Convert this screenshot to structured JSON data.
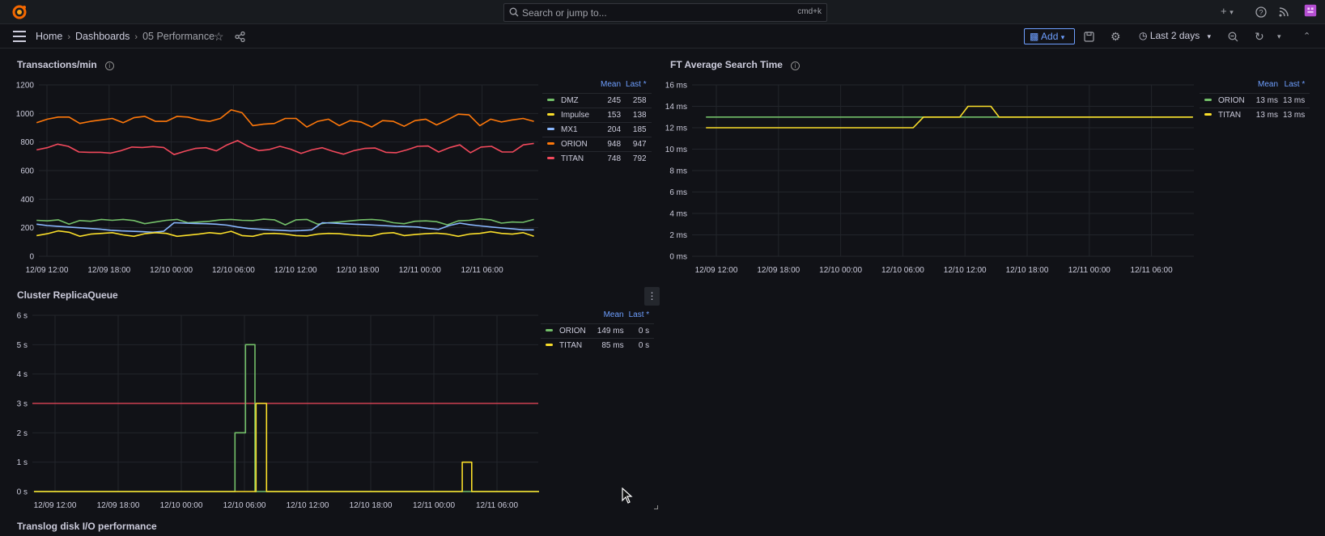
{
  "topbar": {
    "search_placeholder": "Search or jump to...",
    "search_shortcut": "cmd+k",
    "plus_label": "+"
  },
  "breadcrumb": {
    "home": "Home",
    "dashboards": "Dashboards",
    "current": "05 Performance"
  },
  "toolbar": {
    "add_label": "Add",
    "time_range": "Last 2 days"
  },
  "colors": {
    "accent": "#6e9fff",
    "green": "#73bf69",
    "yellow": "#fade2a",
    "blue": "#8ab8ff",
    "orange": "#ff780a",
    "red": "#f2495c"
  },
  "panels": {
    "transactions": {
      "title": "Transactions/min",
      "legend_headers": [
        "Mean",
        "Last *"
      ],
      "legend": [
        {
          "name": "DMZ",
          "mean": "245",
          "last": "258",
          "color": "#73bf69"
        },
        {
          "name": "Impulse",
          "mean": "153",
          "last": "138",
          "color": "#fade2a"
        },
        {
          "name": "MX1",
          "mean": "204",
          "last": "185",
          "color": "#8ab8ff"
        },
        {
          "name": "ORION",
          "mean": "948",
          "last": "947",
          "color": "#ff780a"
        },
        {
          "name": "TITAN",
          "mean": "748",
          "last": "792",
          "color": "#f2495c"
        }
      ]
    },
    "ft_search": {
      "title": "FT Average Search Time",
      "legend_headers": [
        "Mean",
        "Last *"
      ],
      "legend": [
        {
          "name": "ORION",
          "mean": "13 ms",
          "last": "13 ms",
          "color": "#73bf69"
        },
        {
          "name": "TITAN",
          "mean": "13 ms",
          "last": "13 ms",
          "color": "#fade2a"
        }
      ]
    },
    "replica": {
      "title": "Cluster ReplicaQueue",
      "legend_headers": [
        "Mean",
        "Last *"
      ],
      "legend": [
        {
          "name": "ORION",
          "mean": "149 ms",
          "last": "0 s",
          "color": "#73bf69"
        },
        {
          "name": "TITAN",
          "mean": "85 ms",
          "last": "0 s",
          "color": "#fade2a"
        }
      ]
    },
    "translog": {
      "title": "Translog disk I/O performance"
    }
  },
  "chart_data": [
    {
      "type": "line",
      "title": "Transactions/min",
      "x_ticks": [
        "12/09 12:00",
        "12/09 18:00",
        "12/10 00:00",
        "12/10 06:00",
        "12/10 12:00",
        "12/10 18:00",
        "12/11 00:00",
        "12/11 06:00"
      ],
      "y_ticks": [
        "0",
        "200",
        "400",
        "600",
        "800",
        "1000",
        "1200"
      ],
      "ylim": [
        0,
        1200
      ],
      "x_range_hours": [
        -1,
        48
      ],
      "series": [
        {
          "name": "ORION",
          "color": "#ff780a",
          "values": [
            935,
            960,
            975,
            975,
            930,
            945,
            955,
            965,
            935,
            970,
            980,
            945,
            945,
            980,
            975,
            955,
            945,
            965,
            1025,
            1005,
            915,
            925,
            930,
            965,
            965,
            905,
            945,
            960,
            915,
            950,
            940,
            905,
            950,
            945,
            910,
            950,
            960,
            920,
            955,
            995,
            990,
            915,
            960,
            940,
            955,
            965,
            945
          ]
        },
        {
          "name": "TITAN",
          "color": "#f2495c",
          "values": [
            745,
            760,
            785,
            770,
            730,
            728,
            728,
            722,
            740,
            765,
            762,
            768,
            762,
            712,
            735,
            755,
            760,
            738,
            780,
            810,
            770,
            740,
            748,
            770,
            750,
            720,
            745,
            760,
            735,
            715,
            740,
            755,
            758,
            728,
            725,
            745,
            770,
            772,
            730,
            760,
            780,
            725,
            765,
            770,
            730,
            730,
            780,
            790
          ]
        },
        {
          "name": "DMZ",
          "color": "#73bf69",
          "values": [
            252,
            248,
            255,
            225,
            250,
            245,
            258,
            252,
            258,
            250,
            228,
            240,
            252,
            258,
            235,
            240,
            245,
            255,
            258,
            252,
            250,
            260,
            255,
            220,
            255,
            258,
            225,
            235,
            240,
            248,
            255,
            258,
            252,
            235,
            228,
            245,
            248,
            242,
            220,
            248,
            252,
            262,
            255,
            232,
            240,
            238,
            258
          ]
        },
        {
          "name": "MX1",
          "color": "#8ab8ff",
          "values": [
            225,
            215,
            210,
            205,
            200,
            195,
            190,
            182,
            178,
            175,
            172,
            168,
            175,
            235,
            232,
            230,
            228,
            225,
            218,
            205,
            195,
            190,
            185,
            182,
            178,
            180,
            185,
            235,
            232,
            228,
            225,
            222,
            218,
            214,
            210,
            208,
            205,
            195,
            188,
            215,
            232,
            220,
            212,
            205,
            198,
            192,
            185,
            185
          ]
        },
        {
          "name": "Impulse",
          "color": "#fade2a",
          "values": [
            145,
            158,
            178,
            168,
            140,
            155,
            160,
            165,
            150,
            140,
            158,
            165,
            160,
            140,
            148,
            155,
            165,
            158,
            175,
            145,
            140,
            158,
            160,
            155,
            145,
            142,
            155,
            160,
            158,
            150,
            145,
            142,
            160,
            165,
            145,
            152,
            158,
            162,
            155,
            140,
            155,
            160,
            172,
            160,
            155,
            165,
            140
          ]
        }
      ]
    },
    {
      "type": "line",
      "title": "FT Average Search Time",
      "x_ticks": [
        "12/09 12:00",
        "12/09 18:00",
        "12/10 00:00",
        "12/10 06:00",
        "12/10 12:00",
        "12/10 18:00",
        "12/11 00:00",
        "12/11 06:00"
      ],
      "y_ticks": [
        "0 ms",
        "2 ms",
        "4 ms",
        "6 ms",
        "8 ms",
        "10 ms",
        "12 ms",
        "14 ms",
        "16 ms"
      ],
      "ylim": [
        0,
        16
      ],
      "series": [
        {
          "name": "ORION",
          "color": "#73bf69",
          "points": [
            [
              -1,
              13
            ],
            [
              19.3,
              13
            ],
            [
              20.2,
              13
            ],
            [
              46,
              13
            ]
          ]
        },
        {
          "name": "TITAN",
          "color": "#fade2a",
          "points": [
            [
              -1,
              12
            ],
            [
              19,
              12
            ],
            [
              20,
              13
            ],
            [
              23.5,
              13
            ],
            [
              24.3,
              14
            ],
            [
              26.5,
              14
            ],
            [
              27.3,
              13
            ],
            [
              46,
              13
            ]
          ]
        }
      ]
    },
    {
      "type": "line",
      "title": "Cluster ReplicaQueue",
      "x_ticks": [
        "12/09 12:00",
        "12/09 18:00",
        "12/10 00:00",
        "12/10 06:00",
        "12/10 12:00",
        "12/10 18:00",
        "12/11 00:00",
        "12/11 06:00"
      ],
      "y_ticks": [
        "0 s",
        "1 s",
        "2 s",
        "3 s",
        "4 s",
        "5 s",
        "6 s"
      ],
      "ylim": [
        0,
        6
      ],
      "threshold": 3,
      "threshold_color": "#f2495c",
      "series": [
        {
          "name": "ORION",
          "color": "#73bf69",
          "points": [
            [
              -2,
              0
            ],
            [
              17.1,
              0
            ],
            [
              17.1,
              2
            ],
            [
              18.1,
              2
            ],
            [
              18.1,
              5
            ],
            [
              19,
              5
            ],
            [
              19,
              0
            ],
            [
              46,
              0
            ]
          ]
        },
        {
          "name": "TITAN",
          "color": "#fade2a",
          "points": [
            [
              -2,
              0
            ],
            [
              19.1,
              0
            ],
            [
              19.1,
              3
            ],
            [
              20.1,
              3
            ],
            [
              20.1,
              0
            ],
            [
              38.7,
              0
            ],
            [
              38.7,
              1
            ],
            [
              39.6,
              1
            ],
            [
              39.6,
              0
            ],
            [
              46,
              0
            ]
          ]
        }
      ]
    }
  ]
}
